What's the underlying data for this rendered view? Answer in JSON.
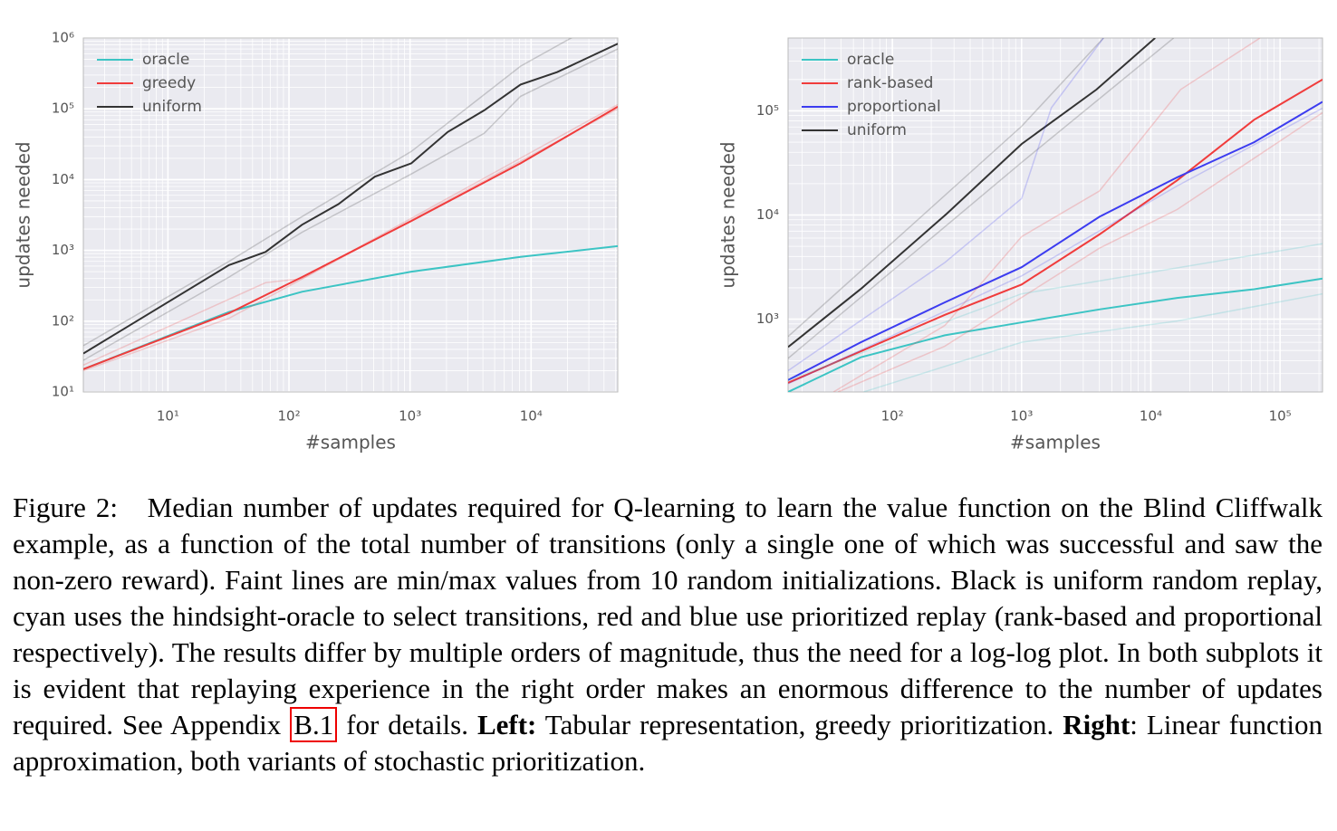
{
  "chart_data": [
    {
      "type": "line",
      "xlabel": "#samples",
      "ylabel": "updates needed",
      "xscale": "log",
      "yscale": "log",
      "grid": true,
      "legend": "upper left",
      "xlim": [
        2,
        52000
      ],
      "ylim": [
        10,
        1000000
      ],
      "xticks": [
        {
          "value": 10,
          "label": "10¹"
        },
        {
          "value": 100,
          "label": "10²"
        },
        {
          "value": 1000,
          "label": "10³"
        },
        {
          "value": 10000,
          "label": "10⁴"
        }
      ],
      "yticks": [
        {
          "value": 10,
          "label": "10¹"
        },
        {
          "value": 100,
          "label": "10²"
        },
        {
          "value": 1000,
          "label": "10³"
        },
        {
          "value": 10000,
          "label": "10⁴"
        },
        {
          "value": 100000,
          "label": "10⁵"
        },
        {
          "value": 1000000,
          "label": "10⁶"
        }
      ],
      "series": [
        {
          "name": "oracle",
          "color": "#3cc4c4",
          "x": [
            2,
            32,
            128,
            1024,
            8192,
            52000
          ],
          "values": [
            21,
            135,
            260,
            500,
            810,
            1150
          ]
        },
        {
          "name": "greedy",
          "color": "#f03c3c",
          "x": [
            2,
            32,
            128,
            1024,
            8192,
            52000
          ],
          "values": [
            21,
            130,
            420,
            2600,
            17000,
            107000
          ]
        },
        {
          "name": "uniform",
          "color": "#333333",
          "x": [
            2,
            32,
            64,
            128,
            256,
            512,
            1024,
            2048,
            4096,
            8192,
            16384,
            52000
          ],
          "values": [
            35,
            620,
            950,
            2300,
            4500,
            11000,
            17000,
            47000,
            95000,
            220000,
            330000,
            830000
          ]
        },
        {
          "color": "#333333",
          "opacity": 0.22,
          "x": [
            2,
            32,
            128,
            1024,
            8192,
            32768
          ],
          "values": [
            45,
            700,
            3000,
            25000,
            400000,
            1500000
          ]
        },
        {
          "color": "#333333",
          "opacity": 0.22,
          "x": [
            2,
            32,
            128,
            1024,
            4096,
            8192,
            52000
          ],
          "values": [
            28,
            420,
            1800,
            12000,
            45000,
            150000,
            700000
          ]
        },
        {
          "color": "#f03c3c",
          "opacity": 0.22,
          "x": [
            2,
            64,
            128,
            52000
          ],
          "values": [
            24,
            350,
            400,
            115000
          ]
        },
        {
          "color": "#f03c3c",
          "opacity": 0.22,
          "x": [
            2,
            32,
            52000
          ],
          "values": [
            20,
            110,
            100000
          ]
        }
      ]
    },
    {
      "type": "line",
      "xlabel": "#samples",
      "ylabel": "updates needed",
      "xscale": "log",
      "yscale": "log",
      "grid": true,
      "legend": "upper left",
      "xlim": [
        15.6,
        213000
      ],
      "ylim": [
        200,
        500000
      ],
      "xticks": [
        {
          "value": 100,
          "label": "10²"
        },
        {
          "value": 1000,
          "label": "10³"
        },
        {
          "value": 10000,
          "label": "10⁴"
        },
        {
          "value": 100000,
          "label": "10⁵"
        }
      ],
      "yticks": [
        {
          "value": 1000,
          "label": "10³"
        },
        {
          "value": 10000,
          "label": "10⁴"
        },
        {
          "value": 100000,
          "label": "10⁵"
        }
      ],
      "series": [
        {
          "name": "oracle",
          "color": "#3cc4c4",
          "x": [
            15.6,
            57,
            255,
            1000,
            4000,
            16000,
            63000,
            213000
          ],
          "values": [
            200,
            430,
            700,
            930,
            1240,
            1600,
            1940,
            2450
          ]
        },
        {
          "name": "rank-based",
          "color": "#f03c3c",
          "x": [
            15.6,
            255,
            1000,
            4000,
            16000,
            63000,
            213000
          ],
          "values": [
            245,
            1100,
            2150,
            6500,
            21500,
            82000,
            200000
          ]
        },
        {
          "name": "proportional",
          "color": "#3c3cf0",
          "x": [
            15.6,
            57,
            255,
            1000,
            4000,
            16000,
            63000,
            213000
          ],
          "values": [
            260,
            600,
            1450,
            3150,
            9600,
            23000,
            50000,
            122000
          ]
        },
        {
          "name": "uniform",
          "color": "#333333",
          "x": [
            15.6,
            57,
            264,
            1000,
            3800,
            10800
          ],
          "values": [
            540,
            1950,
            10300,
            48000,
            160000,
            500000
          ]
        },
        {
          "color": "#333333",
          "opacity": 0.22,
          "x": [
            15.6,
            1000,
            4300
          ],
          "values": [
            680,
            71000,
            500000
          ]
        },
        {
          "color": "#333333",
          "opacity": 0.22,
          "x": [
            15.6,
            1000,
            15000
          ],
          "values": [
            420,
            32000,
            500000
          ]
        },
        {
          "color": "#3c3cf0",
          "opacity": 0.22,
          "x": [
            15.6,
            255,
            1000,
            1700,
            4300
          ],
          "values": [
            320,
            3500,
            14400,
            107000,
            500000
          ]
        },
        {
          "color": "#3c3cf0",
          "opacity": 0.22,
          "x": [
            15.6,
            1000,
            16000,
            213000
          ],
          "values": [
            240,
            2600,
            19000,
            106000
          ]
        },
        {
          "color": "#f03c3c",
          "opacity": 0.22,
          "x": [
            35,
            255,
            1000,
            4000,
            17000,
            70000
          ],
          "values": [
            200,
            870,
            6200,
            17000,
            160000,
            500000
          ]
        },
        {
          "color": "#f03c3c",
          "opacity": 0.22,
          "x": [
            38,
            255,
            4000,
            16000,
            213000
          ],
          "values": [
            200,
            550,
            4800,
            11300,
            96000
          ]
        },
        {
          "color": "#3cc4c4",
          "opacity": 0.22,
          "x": [
            15.6,
            1000,
            213000
          ],
          "values": [
            260,
            1750,
            5300
          ]
        },
        {
          "color": "#3cc4c4",
          "opacity": 0.22,
          "x": [
            60,
            1000,
            16000,
            213000
          ],
          "values": [
            200,
            600,
            960,
            1750
          ]
        }
      ]
    }
  ],
  "caption": {
    "label": "Figure 2:",
    "body": "Median number of updates required for Q-learning to learn the value function on the Blind Cliffwalk example, as a function of the total number of transitions (only a single one of which was successful and saw the non-zero reward). Faint lines are min/max values from 10 random initializations. Black is uniform random replay, cyan uses the hindsight-oracle to select transitions, red and blue use prioritized replay (rank-based and proportional respectively). The results differ by multiple orders of magnitude, thus the need for a log-log plot. In both subplots it is evident that replaying experience in the right order makes an enormous difference to the number of updates required. See Appendix",
    "ref": "B.1",
    "after_ref": "for details.",
    "left_label": "Left:",
    "left_text": "Tabular representation, greedy prioritization.",
    "right_label": "Right",
    "right_text": ": Linear function approximation, both variants of stochastic prioritization."
  }
}
